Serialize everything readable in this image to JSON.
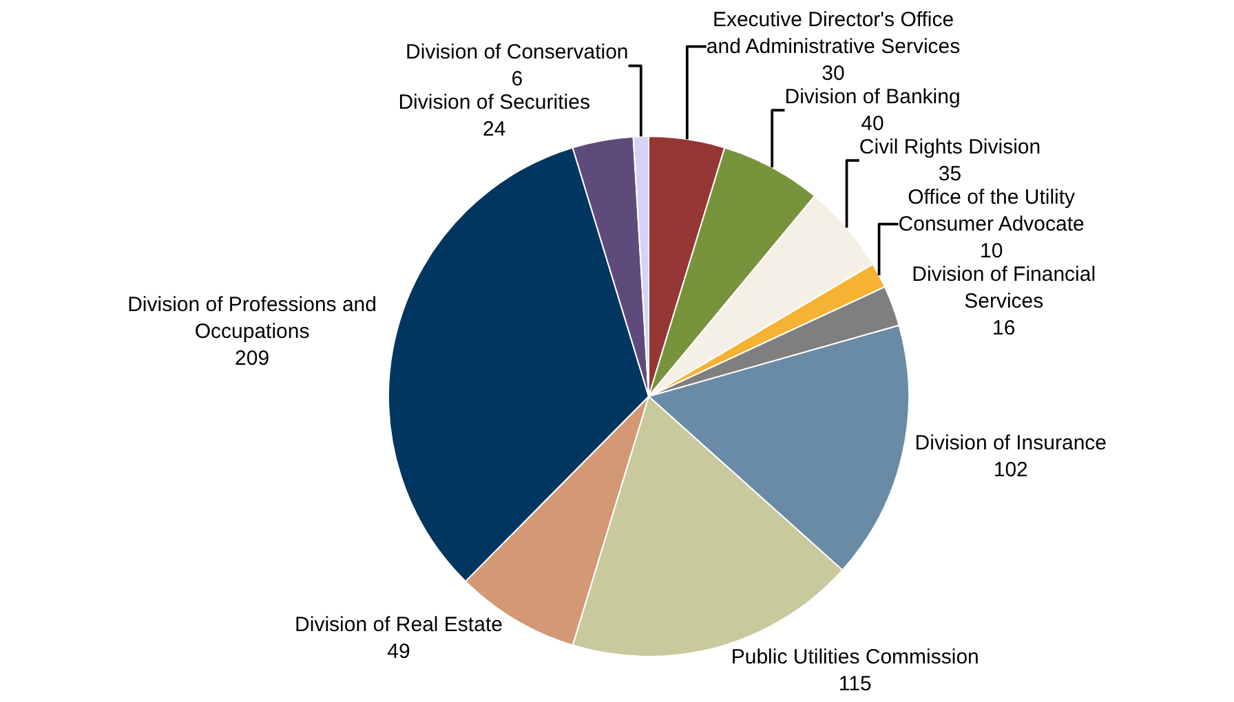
{
  "chart_data": {
    "type": "pie",
    "categories": [
      "Executive Director's Office and Administrative Services",
      "Division of Banking",
      "Civil Rights Division",
      "Office of the Utility Consumer Advocate",
      "Division of Financial Services",
      "Division of Insurance",
      "Public Utilities Commission",
      "Division of Real Estate",
      "Division of Professions and Occupations",
      "Division of Securities",
      "Division of Conservation"
    ],
    "values": [
      30,
      40,
      35,
      10,
      16,
      102,
      115,
      49,
      209,
      24,
      6
    ],
    "colors": [
      "#953735",
      "#77933c",
      "#f5f0e6",
      "#f6b232",
      "#7f7f7f",
      "#6a8ba6",
      "#c9c99e",
      "#d39874",
      "#003660",
      "#5f4b7b",
      "#d7d2f5"
    ],
    "data_labels": true,
    "legend": false
  }
}
